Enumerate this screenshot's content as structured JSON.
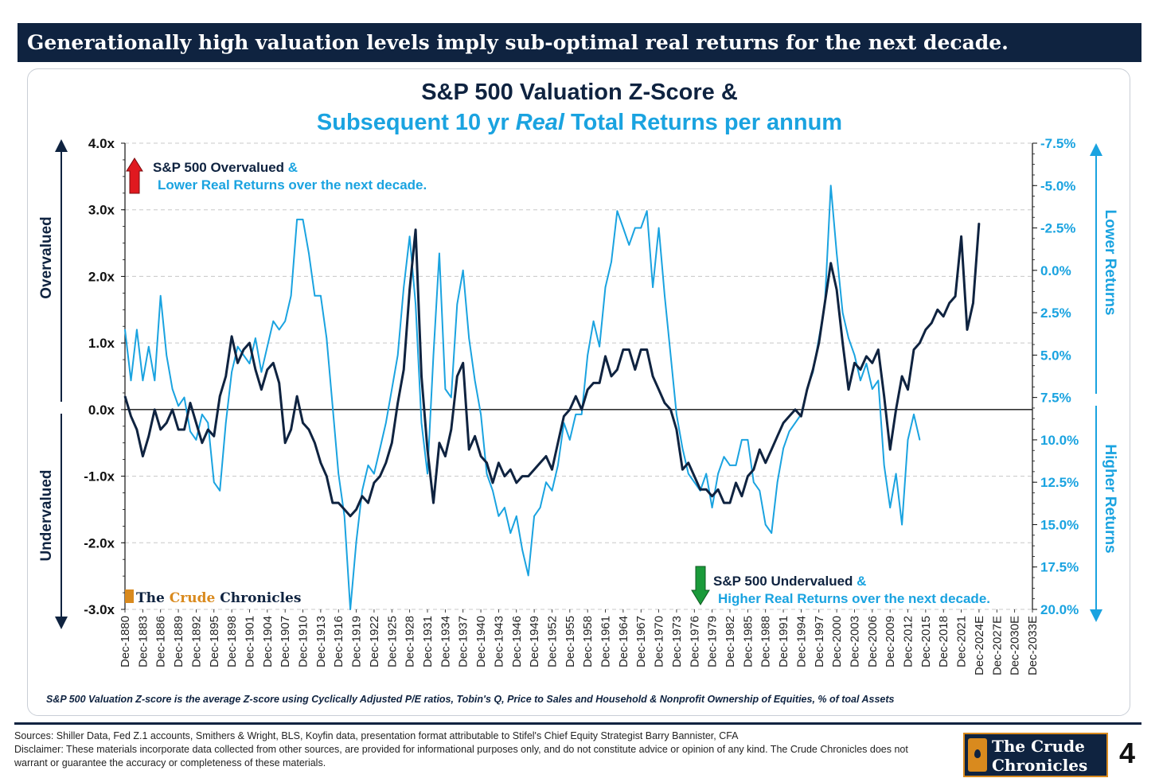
{
  "banner": {
    "text": "Generationally high valuation levels imply sub-optimal real returns for the next decade."
  },
  "chart_data": {
    "type": "line",
    "title_line1": "S&P 500 Valuation Z-Score &",
    "title_line2": "Subsequent 10 yr Real Total Returns per annum",
    "title_line2_parts": [
      "Subsequent 10 yr ",
      "Real",
      " Total Returns per annum"
    ],
    "left_axis": {
      "ticks": [
        "4.0x",
        "3.0x",
        "2.0x",
        "1.0x",
        "0.0x",
        "-1.0x",
        "-2.0x",
        "-3.0x"
      ],
      "tick_values": [
        4,
        3,
        2,
        1,
        0,
        -1,
        -2,
        -3
      ],
      "ylim": [
        -3,
        4
      ],
      "label_top": "Overvalued",
      "label_bottom": "Undervalued"
    },
    "right_axis": {
      "ticks": [
        "-7.5%",
        "-5.0%",
        "-2.5%",
        "0.0%",
        "2.5%",
        "5.0%",
        "7.5%",
        "10.0%",
        "12.5%",
        "15.0%",
        "17.5%",
        "20.0%"
      ],
      "tick_values": [
        -7.5,
        -5,
        -2.5,
        0,
        2.5,
        5,
        7.5,
        10,
        12.5,
        15,
        17.5,
        20
      ],
      "ylim": [
        -7.5,
        20
      ],
      "inverted": true,
      "label_top": "Lower Returns",
      "label_bottom": "Higher Returns"
    },
    "x_ticks": [
      "Dec-1880",
      "Dec-1883",
      "Dec-1886",
      "Dec-1889",
      "Dec-1892",
      "Dec-1895",
      "Dec-1898",
      "Dec-1901",
      "Dec-1904",
      "Dec-1907",
      "Dec-1910",
      "Dec-1913",
      "Dec-1916",
      "Dec-1919",
      "Dec-1922",
      "Dec-1925",
      "Dec-1928",
      "Dec-1931",
      "Dec-1934",
      "Dec-1937",
      "Dec-1940",
      "Dec-1943",
      "Dec-1946",
      "Dec-1949",
      "Dec-1952",
      "Dec-1955",
      "Dec-1958",
      "Dec-1961",
      "Dec-1964",
      "Dec-1967",
      "Dec-1970",
      "Dec-1973",
      "Dec-1976",
      "Dec-1979",
      "Dec-1982",
      "Dec-1985",
      "Dec-1988",
      "Dec-1991",
      "Dec-1994",
      "Dec-1997",
      "Dec-2000",
      "Dec-2003",
      "Dec-2006",
      "Dec-2009",
      "Dec-2012",
      "Dec-2015",
      "Dec-2018",
      "Dec-2021",
      "Dec-2024E",
      "Dec-2027E",
      "Dec-2030E",
      "Dec-2033E"
    ],
    "x_range": [
      1880,
      2033
    ],
    "grid": true,
    "series": [
      {
        "name": "S&P 500 Valuation Z-Score",
        "axis": "left",
        "color": "#0f2340",
        "x": [
          1880,
          1881,
          1882,
          1883,
          1884,
          1885,
          1886,
          1887,
          1888,
          1889,
          1890,
          1891,
          1892,
          1893,
          1894,
          1895,
          1896,
          1897,
          1898,
          1899,
          1900,
          1901,
          1902,
          1903,
          1904,
          1905,
          1906,
          1907,
          1908,
          1909,
          1910,
          1911,
          1912,
          1913,
          1914,
          1915,
          1916,
          1917,
          1918,
          1919,
          1920,
          1921,
          1922,
          1923,
          1924,
          1925,
          1926,
          1927,
          1928,
          1929,
          1930,
          1931,
          1932,
          1933,
          1934,
          1935,
          1936,
          1937,
          1938,
          1939,
          1940,
          1941,
          1942,
          1943,
          1944,
          1945,
          1946,
          1947,
          1948,
          1949,
          1950,
          1951,
          1952,
          1953,
          1954,
          1955,
          1956,
          1957,
          1958,
          1959,
          1960,
          1961,
          1962,
          1963,
          1964,
          1965,
          1966,
          1967,
          1968,
          1969,
          1970,
          1971,
          1972,
          1973,
          1974,
          1975,
          1976,
          1977,
          1978,
          1979,
          1980,
          1981,
          1982,
          1983,
          1984,
          1985,
          1986,
          1987,
          1988,
          1989,
          1990,
          1991,
          1992,
          1993,
          1994,
          1995,
          1996,
          1997,
          1998,
          1999,
          2000,
          2001,
          2002,
          2003,
          2004,
          2005,
          2006,
          2007,
          2008,
          2009,
          2010,
          2011,
          2012,
          2013,
          2014,
          2015,
          2016,
          2017,
          2018,
          2019,
          2020,
          2021,
          2022,
          2023,
          2024
        ],
        "values": [
          0.2,
          -0.1,
          -0.3,
          -0.7,
          -0.4,
          0.0,
          -0.3,
          -0.2,
          0.0,
          -0.3,
          -0.3,
          0.1,
          -0.2,
          -0.5,
          -0.3,
          -0.4,
          0.2,
          0.5,
          1.1,
          0.7,
          0.9,
          1.0,
          0.6,
          0.3,
          0.6,
          0.7,
          0.4,
          -0.5,
          -0.3,
          0.2,
          -0.2,
          -0.3,
          -0.5,
          -0.8,
          -1.0,
          -1.4,
          -1.4,
          -1.5,
          -1.6,
          -1.5,
          -1.3,
          -1.4,
          -1.1,
          -1.0,
          -0.8,
          -0.5,
          0.1,
          0.6,
          1.8,
          2.7,
          0.5,
          -0.6,
          -1.4,
          -0.5,
          -0.7,
          -0.3,
          0.5,
          0.7,
          -0.6,
          -0.4,
          -0.7,
          -0.8,
          -1.1,
          -0.8,
          -1.0,
          -0.9,
          -1.1,
          -1.0,
          -1.0,
          -0.9,
          -0.8,
          -0.7,
          -0.9,
          -0.5,
          -0.1,
          0.0,
          0.2,
          0.0,
          0.3,
          0.4,
          0.4,
          0.8,
          0.5,
          0.6,
          0.9,
          0.9,
          0.6,
          0.9,
          0.9,
          0.5,
          0.3,
          0.1,
          0.0,
          -0.3,
          -0.9,
          -0.8,
          -1.0,
          -1.2,
          -1.2,
          -1.3,
          -1.2,
          -1.4,
          -1.4,
          -1.1,
          -1.3,
          -1.0,
          -0.9,
          -0.6,
          -0.8,
          -0.6,
          -0.4,
          -0.2,
          -0.1,
          0.0,
          -0.1,
          0.3,
          0.6,
          1.0,
          1.6,
          2.2,
          1.8,
          1.0,
          0.3,
          0.7,
          0.6,
          0.8,
          0.7,
          0.9,
          0.2,
          -0.6,
          0.0,
          0.5,
          0.3,
          0.9,
          1.0,
          1.2,
          1.3,
          1.5,
          1.4,
          1.6,
          1.7,
          2.6,
          1.2,
          1.6,
          2.8
        ]
      },
      {
        "name": "Subsequent 10 yr Real Total Returns per annum",
        "axis": "right",
        "color": "#1aa3e0",
        "x": [
          1880,
          1881,
          1882,
          1883,
          1884,
          1885,
          1886,
          1887,
          1888,
          1889,
          1890,
          1891,
          1892,
          1893,
          1894,
          1895,
          1896,
          1897,
          1898,
          1899,
          1900,
          1901,
          1902,
          1903,
          1904,
          1905,
          1906,
          1907,
          1908,
          1909,
          1910,
          1911,
          1912,
          1913,
          1914,
          1915,
          1916,
          1917,
          1918,
          1919,
          1920,
          1921,
          1922,
          1923,
          1924,
          1925,
          1926,
          1927,
          1928,
          1929,
          1930,
          1931,
          1932,
          1933,
          1934,
          1935,
          1936,
          1937,
          1938,
          1939,
          1940,
          1941,
          1942,
          1943,
          1944,
          1945,
          1946,
          1947,
          1948,
          1949,
          1950,
          1951,
          1952,
          1953,
          1954,
          1955,
          1956,
          1957,
          1958,
          1959,
          1960,
          1961,
          1962,
          1963,
          1964,
          1965,
          1966,
          1967,
          1968,
          1969,
          1970,
          1971,
          1972,
          1973,
          1974,
          1975,
          1976,
          1977,
          1978,
          1979,
          1980,
          1981,
          1982,
          1983,
          1984,
          1985,
          1986,
          1987,
          1988,
          1989,
          1990,
          1991,
          1992,
          1993,
          1994,
          1995,
          1996,
          1997,
          1998,
          1999,
          2000,
          2001,
          2002,
          2003,
          2004,
          2005,
          2006,
          2007,
          2008,
          2009,
          2010,
          2011,
          2012,
          2013,
          2014
        ],
        "values": [
          3.5,
          6.5,
          3.5,
          6.5,
          4.5,
          6.5,
          1.5,
          5.0,
          7.0,
          8.0,
          7.5,
          9.5,
          10.0,
          8.5,
          9.0,
          12.5,
          13.0,
          9.0,
          6.0,
          4.5,
          5.0,
          5.5,
          4.0,
          6.0,
          4.5,
          3.0,
          3.5,
          3.0,
          1.5,
          -3.0,
          -3.0,
          -1.0,
          1.5,
          1.5,
          4.0,
          8.0,
          12.0,
          14.5,
          20.0,
          16.0,
          13.0,
          11.5,
          12.0,
          10.5,
          9.0,
          7.0,
          5.0,
          1.0,
          -2.0,
          2.0,
          9.0,
          12.0,
          5.0,
          -1.0,
          7.0,
          7.5,
          2.0,
          0.0,
          4.0,
          6.5,
          8.5,
          12.0,
          13.0,
          14.5,
          14.0,
          15.5,
          14.5,
          16.5,
          18.0,
          14.5,
          14.0,
          12.5,
          13.0,
          11.5,
          9.0,
          10.0,
          8.5,
          8.5,
          5.0,
          3.0,
          4.5,
          1.0,
          -0.5,
          -3.5,
          -2.5,
          -1.5,
          -2.5,
          -2.5,
          -3.5,
          1.0,
          -2.5,
          1.5,
          5.0,
          8.5,
          10.5,
          12.0,
          12.5,
          13.0,
          12.0,
          14.0,
          12.0,
          11.0,
          11.5,
          11.5,
          10.0,
          10.0,
          12.5,
          13.0,
          15.0,
          15.5,
          12.5,
          10.5,
          9.5,
          9.0,
          8.5,
          7.0,
          6.0,
          4.0,
          2.0,
          -5.0,
          -1.0,
          2.5,
          4.0,
          5.0,
          6.5,
          5.5,
          7.0,
          6.5,
          11.5,
          14.0,
          12.0,
          15.0,
          10.0,
          8.5,
          10.0
        ]
      }
    ],
    "annotations": [
      {
        "line1_dark": "S&P 500 Overvalued",
        "line1_light": " &",
        "line2": "Lower Real Returns over the next decade."
      },
      {
        "line1_dark": "S&P 500 Undervalued",
        "line1_light": " &",
        "line2": "Higher Real Returns over the next decade."
      }
    ],
    "watermark": "The Crude Chronicles",
    "watermark_parts": [
      "The ",
      "Crude",
      " Chronicles"
    ]
  },
  "note": "S&P 500 Valuation  Z-score is the average  Z-score using  Cyclically  Adjusted  P/E ratios,  Tobin's Q,  Price to Sales  and Household  & Nonprofit  Ownership of Equities,  % of toal Assets",
  "footer": {
    "sources": "Sources: Shiller Data, Fed Z.1 accounts, Smithers & Wright, BLS, Koyfin data, presentation format attributable to Stifel's Chief Equity Strategist Barry Bannister, CFA",
    "disclaimer": "Disclaimer: These materials incorporate data collected from other sources, are provided for informational purposes only, and do not constitute advice or opinion of any kind. The Crude Chronicles does not warrant or guarantee the accuracy or completeness of these materials."
  },
  "brand": {
    "line1": "The Crude",
    "line2": "Chronicles"
  },
  "page_number": "4",
  "colors": {
    "navy": "#0f2340",
    "light_blue": "#1aa3e0",
    "up_arrow": "#e0191f",
    "down_arrow": "#1a9a3a",
    "orange": "#d98a1e"
  }
}
